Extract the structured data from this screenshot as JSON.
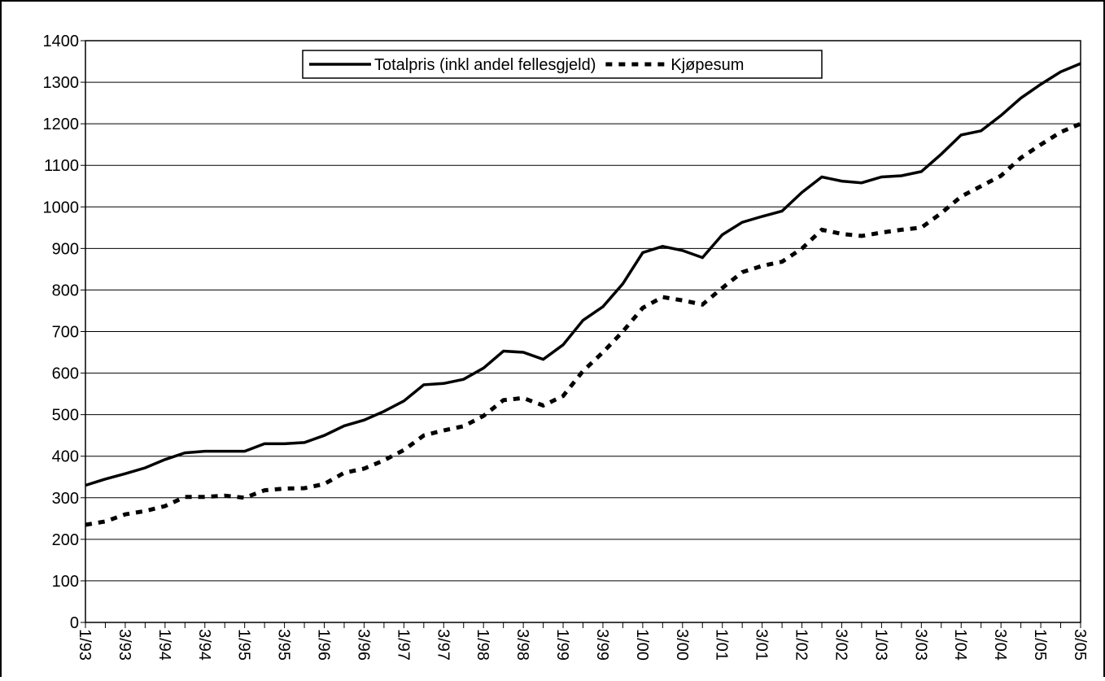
{
  "chart_data": {
    "type": "line",
    "categories": [
      "1/93",
      null,
      "3/93",
      null,
      "1/94",
      null,
      "3/94",
      null,
      "1/95",
      null,
      "3/95",
      null,
      "1/96",
      null,
      "3/96",
      null,
      "1/97",
      null,
      "3/97",
      null,
      "1/98",
      null,
      "3/98",
      null,
      "1/99",
      null,
      "3/99",
      null,
      "1/00",
      null,
      "3/00",
      null,
      "1/01",
      null,
      "3/01",
      null,
      "1/02",
      null,
      "3/02",
      null,
      "1/03",
      null,
      "3/03",
      null,
      "1/04",
      null,
      "3/04",
      null,
      "1/05",
      null,
      "3/05"
    ],
    "series": [
      {
        "name": "Totalpris (inkl andel fellesgjeld)",
        "color": "#000000",
        "dash": "solid",
        "values": [
          330,
          345,
          358,
          372,
          392,
          408,
          412,
          412,
          412,
          430,
          430,
          433,
          450,
          473,
          487,
          508,
          533,
          572,
          575,
          585,
          612,
          653,
          650,
          633,
          668,
          727,
          760,
          815,
          890,
          905,
          895,
          878,
          933,
          963,
          977,
          990,
          1035,
          1072,
          1062,
          1058,
          1072,
          1075,
          1085,
          1127,
          1173,
          1183,
          1220,
          1262,
          1295,
          1325,
          1345
        ]
      },
      {
        "name": "Kjøpesum",
        "color": "#000000",
        "dash": "dashed",
        "values": [
          235,
          243,
          260,
          268,
          280,
          302,
          302,
          305,
          300,
          318,
          322,
          323,
          333,
          360,
          370,
          390,
          415,
          450,
          462,
          472,
          497,
          535,
          540,
          522,
          545,
          605,
          650,
          700,
          757,
          783,
          775,
          765,
          805,
          843,
          858,
          868,
          900,
          945,
          935,
          930,
          938,
          945,
          950,
          985,
          1025,
          1050,
          1075,
          1118,
          1150,
          1180,
          1200
        ]
      }
    ],
    "ylim": [
      0,
      1400
    ],
    "yticks": [
      0,
      100,
      200,
      300,
      400,
      500,
      600,
      700,
      800,
      900,
      1000,
      1100,
      1200,
      1300,
      1400
    ],
    "grid": true,
    "legend": "top"
  }
}
